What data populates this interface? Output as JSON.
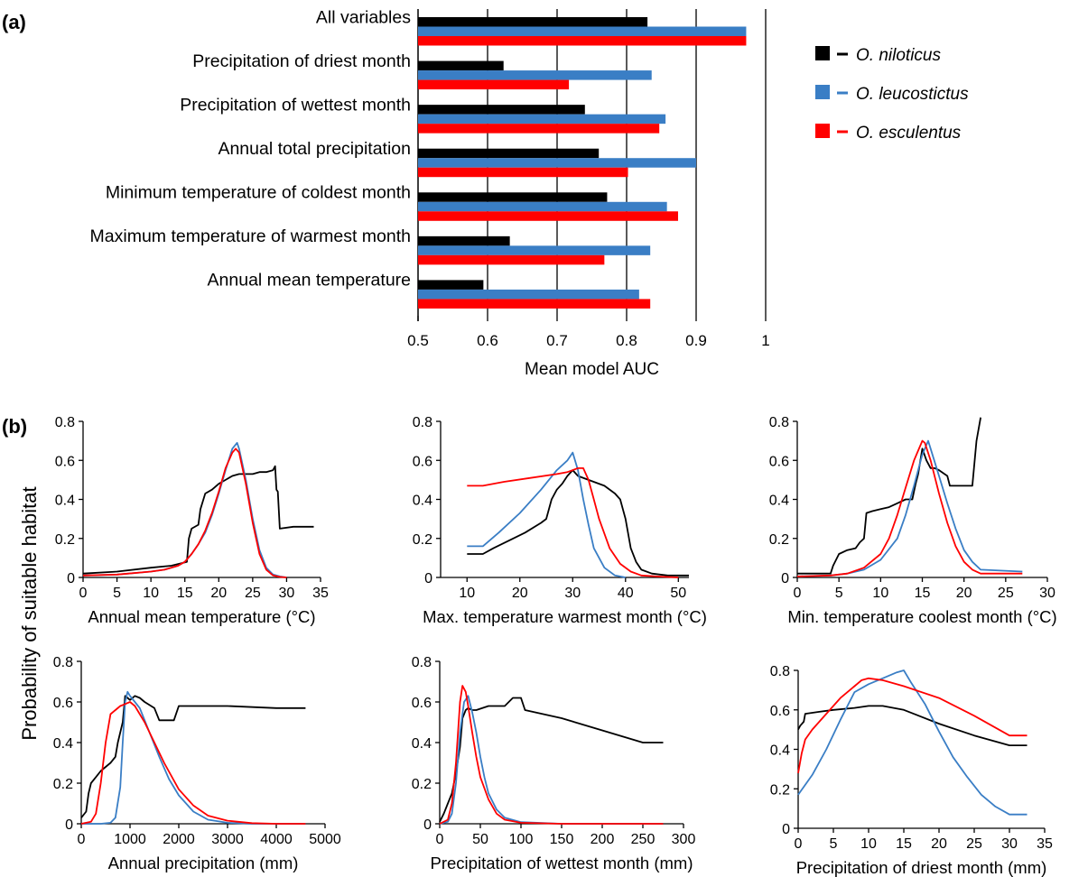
{
  "panel_a_label": "(a)",
  "panel_b_label": "(b)",
  "shared_ylabel": "Probability of suitable habitat",
  "colors": {
    "niloticus": "#000000",
    "leucostictus": "#3a7ec5",
    "esculentus": "#ff0000"
  },
  "chart_data": [
    {
      "type": "bar",
      "orientation": "horizontal",
      "panel": "(a)",
      "xlabel": "Mean model AUC",
      "xlim": [
        0.5,
        1
      ],
      "xticks": [
        "0.5",
        "0.6",
        "0.7",
        "0.8",
        "0.9",
        "1"
      ],
      "grid": "vertical",
      "legend_position": "right",
      "categories": [
        "All  variables",
        "Precipitation of driest month",
        "Precipitation of wettest month",
        "Annual total precipitation",
        "Minimum temperature of coldest month",
        "Maximum temperature of warmest month",
        "Annual mean temperature"
      ],
      "series": [
        {
          "name": "O. niloticus",
          "color": "#000000",
          "values": [
            0.83,
            0.623,
            0.74,
            0.76,
            0.772,
            0.632,
            0.594
          ]
        },
        {
          "name": "O. leucostictus",
          "color": "#3a7ec5",
          "values": [
            0.972,
            0.836,
            0.856,
            0.9,
            0.858,
            0.834,
            0.818
          ]
        },
        {
          "name": "O. esculentus",
          "color": "#ff0000",
          "values": [
            0.972,
            0.717,
            0.847,
            0.802,
            0.874,
            0.768,
            0.834
          ]
        }
      ]
    },
    {
      "type": "line",
      "panel": "(b)",
      "xlabel": "Annual mean temperature (°C)",
      "xlim": [
        0,
        35
      ],
      "ylim": [
        0,
        0.8
      ],
      "xticks": [
        "0",
        "5",
        "10",
        "15",
        "20",
        "25",
        "30",
        "35"
      ],
      "yticks": [
        "0",
        "0.2",
        "0.4",
        "0.6",
        "0.8"
      ],
      "series": [
        {
          "name": "O. niloticus",
          "color": "#000000",
          "x": [
            0,
            5,
            10,
            13,
            15.3,
            15.6,
            16,
            17,
            17.3,
            18,
            19,
            20,
            21,
            22,
            23,
            24,
            25,
            26,
            27,
            28,
            28.3,
            28.5,
            28.7,
            29,
            31,
            34
          ],
          "y": [
            0.02,
            0.03,
            0.05,
            0.06,
            0.08,
            0.2,
            0.25,
            0.27,
            0.35,
            0.43,
            0.45,
            0.48,
            0.5,
            0.52,
            0.53,
            0.53,
            0.53,
            0.54,
            0.54,
            0.55,
            0.57,
            0.45,
            0.44,
            0.25,
            0.26,
            0.26
          ]
        },
        {
          "name": "O. leucostictus",
          "color": "#3a7ec5",
          "x": [
            0,
            5,
            10,
            12,
            14,
            15,
            16,
            17,
            18,
            19,
            20,
            21,
            22,
            22.7,
            23,
            24,
            25,
            26,
            27,
            28,
            29,
            30
          ],
          "y": [
            0.01,
            0.015,
            0.03,
            0.04,
            0.06,
            0.08,
            0.12,
            0.17,
            0.23,
            0.32,
            0.43,
            0.55,
            0.66,
            0.69,
            0.66,
            0.5,
            0.3,
            0.14,
            0.05,
            0.015,
            0.005,
            0
          ]
        },
        {
          "name": "O. esculentus",
          "color": "#ff0000",
          "x": [
            0,
            5,
            10,
            12,
            14,
            15,
            16,
            17,
            18,
            19,
            20,
            21,
            22,
            22.5,
            23,
            24,
            25,
            26,
            27,
            28,
            29,
            30
          ],
          "y": [
            0.01,
            0.015,
            0.03,
            0.04,
            0.06,
            0.08,
            0.12,
            0.17,
            0.24,
            0.33,
            0.44,
            0.56,
            0.64,
            0.66,
            0.64,
            0.48,
            0.28,
            0.12,
            0.04,
            0.01,
            0.003,
            0
          ]
        }
      ]
    },
    {
      "type": "line",
      "panel": "(b)",
      "xlabel": "Max. temperature warmest month (°C)",
      "xlim": [
        5,
        52
      ],
      "ylim": [
        0,
        0.8
      ],
      "xticks": [
        "10",
        "20",
        "30",
        "40",
        "50"
      ],
      "yticks": [
        "0",
        "0.2",
        "0.4",
        "0.6",
        "0.8"
      ],
      "series": [
        {
          "name": "O. niloticus",
          "color": "#000000",
          "x": [
            10,
            13,
            15,
            18,
            21,
            24,
            25,
            26,
            27,
            28,
            29,
            30,
            31,
            33,
            36,
            38,
            39,
            40,
            41,
            42,
            43,
            45,
            48,
            52
          ],
          "y": [
            0.12,
            0.12,
            0.15,
            0.19,
            0.23,
            0.28,
            0.3,
            0.4,
            0.45,
            0.48,
            0.52,
            0.55,
            0.52,
            0.5,
            0.47,
            0.43,
            0.4,
            0.3,
            0.15,
            0.08,
            0.04,
            0.02,
            0.01,
            0.01
          ]
        },
        {
          "name": "O. leucostictus",
          "color": "#3a7ec5",
          "x": [
            10,
            13,
            16,
            20,
            24,
            27,
            29,
            30,
            31,
            32,
            33,
            34,
            36,
            38,
            40
          ],
          "y": [
            0.16,
            0.16,
            0.23,
            0.33,
            0.45,
            0.55,
            0.6,
            0.64,
            0.55,
            0.4,
            0.27,
            0.15,
            0.05,
            0.01,
            0
          ]
        },
        {
          "name": "O. esculentus",
          "color": "#ff0000",
          "x": [
            10,
            13,
            17,
            22,
            27,
            29,
            30,
            31,
            32,
            33,
            34,
            35,
            37,
            39,
            41,
            43,
            46,
            50
          ],
          "y": [
            0.47,
            0.47,
            0.49,
            0.51,
            0.53,
            0.54,
            0.55,
            0.56,
            0.56,
            0.5,
            0.4,
            0.3,
            0.15,
            0.07,
            0.03,
            0.01,
            0.005,
            0
          ]
        }
      ]
    },
    {
      "type": "line",
      "panel": "(b)",
      "xlabel": "Min. temperature coolest month (°C)",
      "xlim": [
        0,
        30
      ],
      "ylim": [
        0,
        0.8
      ],
      "xticks": [
        "0",
        "5",
        "10",
        "15",
        "20",
        "25",
        "30"
      ],
      "yticks": [
        "0",
        "0.2",
        "0.4",
        "0.6",
        "0.8"
      ],
      "series": [
        {
          "name": "O. niloticus",
          "color": "#000000",
          "x": [
            0,
            4,
            4.3,
            5,
            6,
            7,
            7.5,
            8,
            8.3,
            9,
            10,
            11,
            12,
            13,
            13.8,
            14.2,
            14.5,
            15,
            15.5,
            16,
            16.5,
            17,
            18,
            18.3,
            19,
            20,
            21,
            21.5,
            22
          ],
          "y": [
            0.02,
            0.02,
            0.06,
            0.12,
            0.14,
            0.15,
            0.18,
            0.2,
            0.33,
            0.34,
            0.35,
            0.36,
            0.38,
            0.4,
            0.4,
            0.48,
            0.53,
            0.66,
            0.6,
            0.56,
            0.56,
            0.55,
            0.52,
            0.47,
            0.47,
            0.47,
            0.47,
            0.7,
            0.82
          ]
        },
        {
          "name": "O. leucostictus",
          "color": "#3a7ec5",
          "x": [
            0,
            4,
            6,
            8,
            10,
            12,
            13,
            14,
            15,
            15.7,
            16,
            17,
            18,
            19,
            20,
            21,
            22,
            27
          ],
          "y": [
            0.005,
            0.01,
            0.02,
            0.04,
            0.09,
            0.2,
            0.32,
            0.47,
            0.63,
            0.7,
            0.66,
            0.52,
            0.38,
            0.25,
            0.14,
            0.08,
            0.04,
            0.03
          ]
        },
        {
          "name": "O. esculentus",
          "color": "#ff0000",
          "x": [
            0,
            4,
            6,
            8,
            10,
            11,
            12,
            13,
            14,
            15,
            15.3,
            16,
            17,
            18,
            19,
            20,
            21,
            22,
            27
          ],
          "y": [
            0.005,
            0.01,
            0.02,
            0.05,
            0.12,
            0.2,
            0.32,
            0.46,
            0.6,
            0.7,
            0.69,
            0.6,
            0.43,
            0.28,
            0.16,
            0.08,
            0.04,
            0.02,
            0.02
          ]
        }
      ]
    },
    {
      "type": "line",
      "panel": "(b)",
      "xlabel": "Annual precipitation (mm)",
      "xlim": [
        0,
        5000
      ],
      "ylim": [
        0,
        0.8
      ],
      "xticks": [
        "0",
        "1000",
        "2000",
        "3000",
        "4000",
        "5000"
      ],
      "yticks": [
        "0",
        "0.2",
        "0.4",
        "0.6",
        "0.8"
      ],
      "series": [
        {
          "name": "O. niloticus",
          "color": "#000000",
          "x": [
            0,
            100,
            150,
            200,
            300,
            400,
            500,
            600,
            700,
            750,
            850,
            900,
            950,
            1000,
            1100,
            1200,
            1300,
            1500,
            1600,
            1900,
            2000,
            2200,
            3000,
            4000,
            4600
          ],
          "y": [
            0.03,
            0.06,
            0.15,
            0.2,
            0.23,
            0.26,
            0.28,
            0.3,
            0.33,
            0.4,
            0.5,
            0.63,
            0.62,
            0.61,
            0.63,
            0.62,
            0.6,
            0.57,
            0.51,
            0.51,
            0.58,
            0.58,
            0.58,
            0.57,
            0.57
          ]
        },
        {
          "name": "O. leucostictus",
          "color": "#3a7ec5",
          "x": [
            0,
            400,
            600,
            700,
            800,
            850,
            900,
            950,
            1000,
            1100,
            1200,
            1400,
            1600,
            1800,
            2000,
            2300,
            2600,
            3000,
            3500,
            4600
          ],
          "y": [
            0,
            0,
            0.005,
            0.03,
            0.18,
            0.4,
            0.6,
            0.65,
            0.63,
            0.6,
            0.57,
            0.45,
            0.33,
            0.22,
            0.14,
            0.06,
            0.02,
            0.005,
            0,
            0
          ]
        },
        {
          "name": "O. esculentus",
          "color": "#ff0000",
          "x": [
            0,
            200,
            300,
            400,
            500,
            600,
            700,
            800,
            900,
            1000,
            1100,
            1300,
            1500,
            1700,
            2000,
            2300,
            2600,
            3000,
            3500,
            4000,
            4600
          ],
          "y": [
            0,
            0.01,
            0.05,
            0.2,
            0.4,
            0.54,
            0.56,
            0.58,
            0.59,
            0.6,
            0.58,
            0.5,
            0.4,
            0.3,
            0.17,
            0.09,
            0.04,
            0.015,
            0.003,
            0,
            0
          ]
        }
      ]
    },
    {
      "type": "line",
      "panel": "(b)",
      "xlabel": "Precipitation of wettest month (mm)",
      "xlim": [
        0,
        300
      ],
      "ylim": [
        0,
        0.8
      ],
      "xticks": [
        "0",
        "50",
        "100",
        "150",
        "200",
        "250",
        "300"
      ],
      "yticks": [
        "0",
        "0.2",
        "0.4",
        "0.6",
        "0.8"
      ],
      "series": [
        {
          "name": "O. niloticus",
          "color": "#000000",
          "x": [
            0,
            5,
            10,
            15,
            20,
            25,
            28,
            32,
            35,
            40,
            45,
            60,
            80,
            90,
            100,
            105,
            150,
            200,
            250,
            275
          ],
          "y": [
            0.01,
            0.05,
            0.1,
            0.15,
            0.25,
            0.38,
            0.52,
            0.56,
            0.57,
            0.56,
            0.56,
            0.58,
            0.58,
            0.62,
            0.62,
            0.56,
            0.52,
            0.46,
            0.4,
            0.4
          ]
        },
        {
          "name": "O. leucostictus",
          "color": "#3a7ec5",
          "x": [
            0,
            10,
            15,
            20,
            25,
            30,
            35,
            40,
            45,
            50,
            55,
            60,
            70,
            80,
            100,
            150,
            275
          ],
          "y": [
            0,
            0.01,
            0.05,
            0.2,
            0.45,
            0.6,
            0.63,
            0.55,
            0.45,
            0.33,
            0.23,
            0.15,
            0.07,
            0.03,
            0.008,
            0,
            0
          ]
        },
        {
          "name": "O. esculentus",
          "color": "#ff0000",
          "x": [
            0,
            10,
            15,
            20,
            25,
            28,
            32,
            35,
            40,
            45,
            50,
            60,
            70,
            80,
            100,
            150,
            275
          ],
          "y": [
            0,
            0.02,
            0.1,
            0.3,
            0.6,
            0.68,
            0.65,
            0.58,
            0.45,
            0.33,
            0.23,
            0.12,
            0.05,
            0.02,
            0.005,
            0,
            0
          ]
        }
      ]
    },
    {
      "type": "line",
      "panel": "(b)",
      "xlabel": "Precipitation of driest month (mm)",
      "xlim": [
        0,
        35
      ],
      "ylim": [
        0,
        0.8
      ],
      "ytick_start": 0.2,
      "xticks": [
        "0",
        "5",
        "10",
        "15",
        "20",
        "25",
        "30",
        "35"
      ],
      "yticks": [
        "0",
        "0.2",
        "0.4",
        "0.6",
        "0.8"
      ],
      "series": [
        {
          "name": "O. niloticus",
          "color": "#000000",
          "x": [
            0,
            0.3,
            0.8,
            1,
            3,
            5,
            8,
            10,
            12,
            15,
            20,
            25,
            30,
            32.5
          ],
          "y": [
            0.5,
            0.52,
            0.54,
            0.58,
            0.59,
            0.6,
            0.61,
            0.62,
            0.62,
            0.6,
            0.53,
            0.47,
            0.42,
            0.42
          ]
        },
        {
          "name": "O. leucostictus",
          "color": "#3a7ec5",
          "x": [
            0,
            2,
            4,
            6,
            8,
            10,
            12,
            14,
            15,
            16,
            18,
            20,
            22,
            24,
            26,
            28,
            30,
            32.5
          ],
          "y": [
            0.17,
            0.27,
            0.4,
            0.55,
            0.69,
            0.73,
            0.76,
            0.79,
            0.8,
            0.74,
            0.63,
            0.49,
            0.36,
            0.26,
            0.17,
            0.11,
            0.07,
            0.07
          ]
        },
        {
          "name": "O. esculentus",
          "color": "#ff0000",
          "x": [
            0,
            0.5,
            1,
            2,
            4,
            6,
            8,
            9,
            10,
            12,
            15,
            20,
            25,
            29,
            30,
            32.5
          ],
          "y": [
            0.28,
            0.38,
            0.45,
            0.5,
            0.58,
            0.66,
            0.72,
            0.75,
            0.76,
            0.75,
            0.72,
            0.66,
            0.57,
            0.49,
            0.47,
            0.47
          ]
        }
      ]
    }
  ]
}
